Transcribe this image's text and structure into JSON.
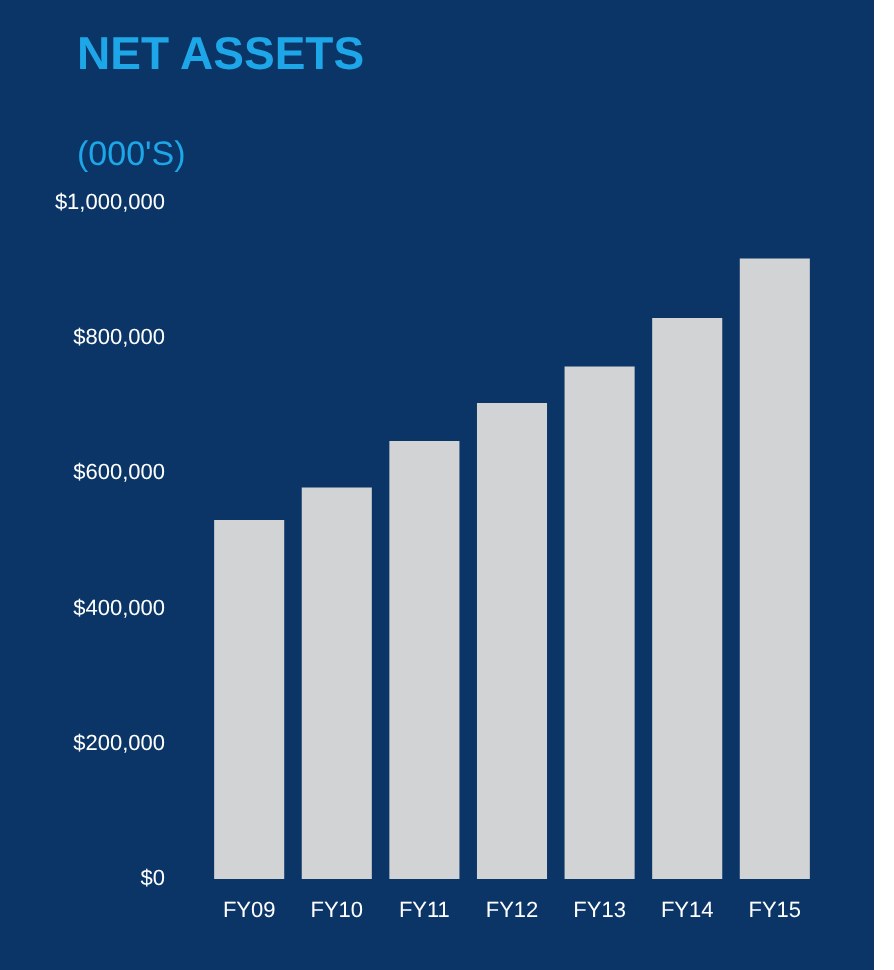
{
  "chart_data": {
    "type": "bar",
    "title": "NET ASSETS",
    "subtitle": "(000'S)",
    "categories": [
      "FY09",
      "FY10",
      "FY11",
      "FY12",
      "FY13",
      "FY14",
      "FY15"
    ],
    "values": [
      531000,
      579000,
      648000,
      704000,
      758000,
      830000,
      918000
    ],
    "color": "#d1d3d4",
    "ylim": [
      0,
      1000000
    ],
    "yticks": [
      {
        "value": 0,
        "label": "$0"
      },
      {
        "value": 200000,
        "label": "$200,000"
      },
      {
        "value": 400000,
        "label": "$400,000"
      },
      {
        "value": 600000,
        "label": "$600,000"
      },
      {
        "value": 800000,
        "label": "$800,000"
      },
      {
        "value": 1000000,
        "label": "$1,000,000"
      }
    ],
    "grid": false
  }
}
